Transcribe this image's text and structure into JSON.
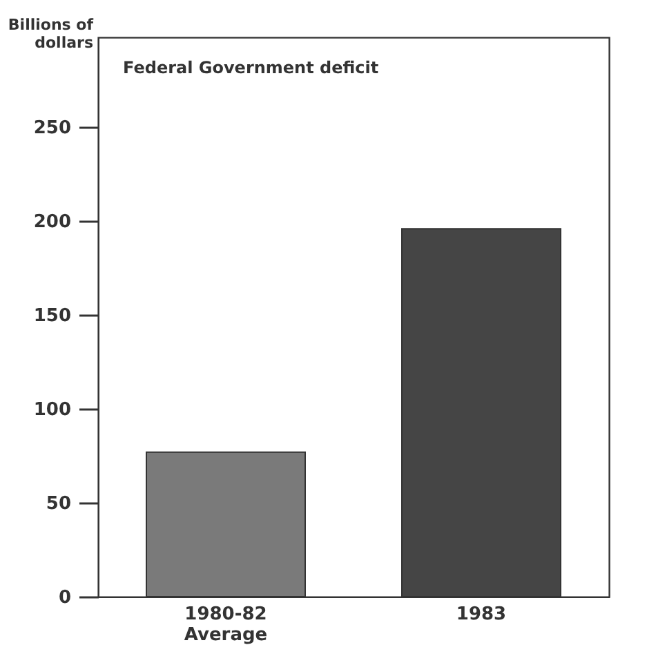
{
  "chart_data": {
    "type": "bar",
    "title": "Federal Government deficit",
    "ylabel": "Billions of dollars",
    "categories": [
      "1980-82 Average",
      "1983"
    ],
    "values": [
      77,
      196
    ],
    "colors": [
      "#7a7a7a",
      "#454545"
    ],
    "ylim": [
      0,
      298
    ],
    "yticks": [
      0,
      50,
      100,
      150,
      200,
      250
    ],
    "grid": false
  }
}
